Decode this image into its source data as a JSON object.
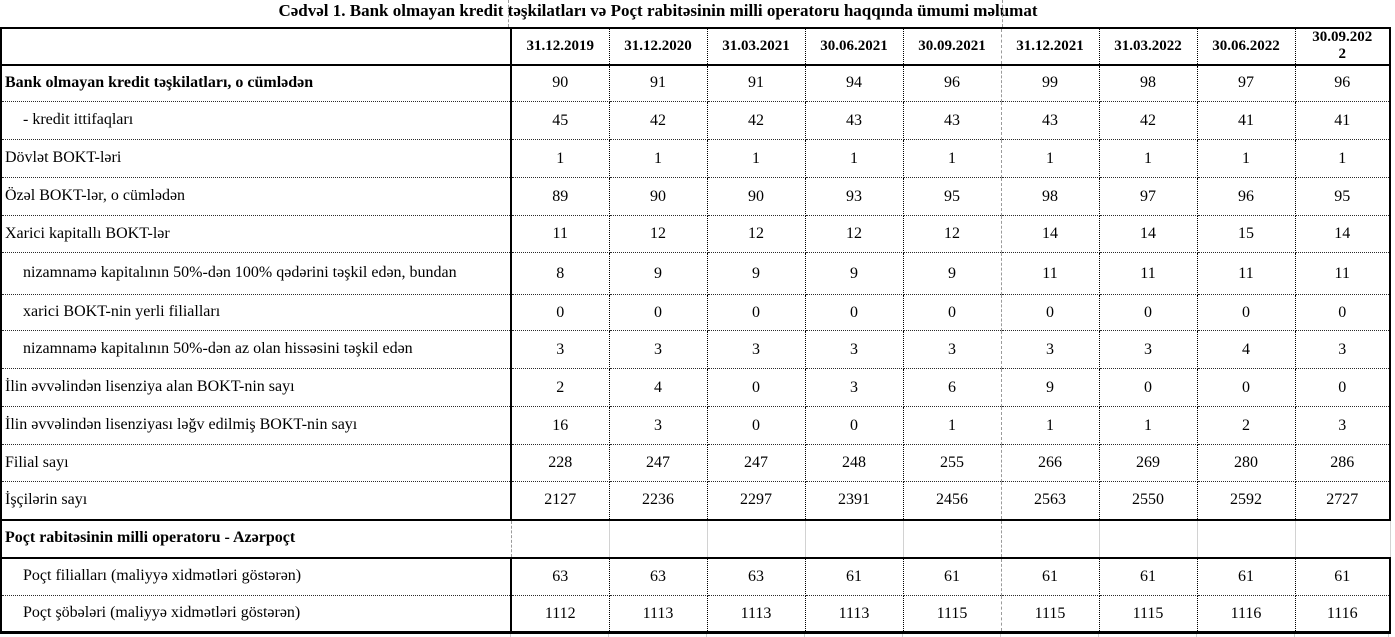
{
  "title": "Cədvəl 1. Bank olmayan kredit təşkilatları və Poçt rabitəsinin milli operatoru haqqında ümumi məlumat",
  "columns": [
    "31.12.2019",
    "31.12.2020",
    "31.03.2021",
    "30.06.2021",
    "30.09.2021",
    "31.12.2021",
    "31.03.2022",
    "30.06.2022",
    "30.09.2022"
  ],
  "rows": [
    {
      "label": "Bank olmayan kredit təşkilatları, o cümlədən",
      "bold": true,
      "indent": false,
      "values": [
        "90",
        "91",
        "91",
        "94",
        "96",
        "99",
        "98",
        "97",
        "96"
      ]
    },
    {
      "label": "- kredit ittifaqları",
      "bold": false,
      "indent": true,
      "values": [
        "45",
        "42",
        "42",
        "43",
        "43",
        "43",
        "42",
        "41",
        "41"
      ]
    },
    {
      "label": "Dövlət BOKT-ləri",
      "bold": false,
      "indent": false,
      "values": [
        "1",
        "1",
        "1",
        "1",
        "1",
        "1",
        "1",
        "1",
        "1"
      ]
    },
    {
      "label": "Özəl BOKT-lər, o cümlədən",
      "bold": false,
      "indent": false,
      "values": [
        "89",
        "90",
        "90",
        "93",
        "95",
        "98",
        "97",
        "96",
        "95"
      ]
    },
    {
      "label": "Xarici kapitallı BOKT-lər",
      "bold": false,
      "indent": false,
      "values": [
        "11",
        "12",
        "12",
        "12",
        "12",
        "14",
        "14",
        "15",
        "14"
      ]
    },
    {
      "label": "nizamnamə kapitalının 50%-dən 100% qədərini təşkil edən, bundan",
      "bold": false,
      "indent": true,
      "wrap": true,
      "values": [
        "8",
        "9",
        "9",
        "9",
        "9",
        "11",
        "11",
        "11",
        "11"
      ]
    },
    {
      "label": "xarici BOKT-nin yerli filialları",
      "bold": false,
      "indent": true,
      "values": [
        "0",
        "0",
        "0",
        "0",
        "0",
        "0",
        "0",
        "0",
        "0"
      ]
    },
    {
      "label": "nizamnamə kapitalının 50%-dən az olan hissəsini təşkil edən",
      "bold": false,
      "indent": true,
      "values": [
        "3",
        "3",
        "3",
        "3",
        "3",
        "3",
        "3",
        "4",
        "3"
      ]
    },
    {
      "label": "İlin əvvəlindən lisenziya alan BOKT-nin sayı",
      "bold": false,
      "indent": false,
      "values": [
        "2",
        "4",
        "0",
        "3",
        "6",
        "9",
        "0",
        "0",
        "0"
      ]
    },
    {
      "label": "İlin əvvəlindən lisenziyası ləğv edilmiş BOKT-nin sayı",
      "bold": false,
      "indent": false,
      "values": [
        "16",
        "3",
        "0",
        "0",
        "1",
        "1",
        "1",
        "2",
        "3"
      ]
    },
    {
      "label": "Filial sayı",
      "bold": false,
      "indent": false,
      "values": [
        "228",
        "247",
        "247",
        "248",
        "255",
        "266",
        "269",
        "280",
        "286"
      ]
    },
    {
      "label": "İşçilərin sayı",
      "bold": false,
      "indent": false,
      "thick_bottom": true,
      "values": [
        "2127",
        "2236",
        "2297",
        "2391",
        "2456",
        "2563",
        "2550",
        "2592",
        "2727"
      ]
    },
    {
      "label": "Poçt rabitəsinin milli operatoru - Azərpoçt",
      "bold": true,
      "indent": false,
      "section": true,
      "values": [
        "",
        "",
        "",
        "",
        "",
        "",
        "",
        "",
        ""
      ]
    },
    {
      "label": "Poçt filialları (maliyyə xidmətləri göstərən)",
      "bold": false,
      "indent": true,
      "values": [
        "63",
        "63",
        "63",
        "61",
        "61",
        "61",
        "61",
        "61",
        "61"
      ]
    },
    {
      "label": "Poçt şöbələri (maliyyə xidmətləri göstərən)",
      "bold": false,
      "indent": true,
      "last": true,
      "values": [
        "1112",
        "1113",
        "1113",
        "1113",
        "1115",
        "1115",
        "1115",
        "1116",
        "1116"
      ]
    }
  ]
}
